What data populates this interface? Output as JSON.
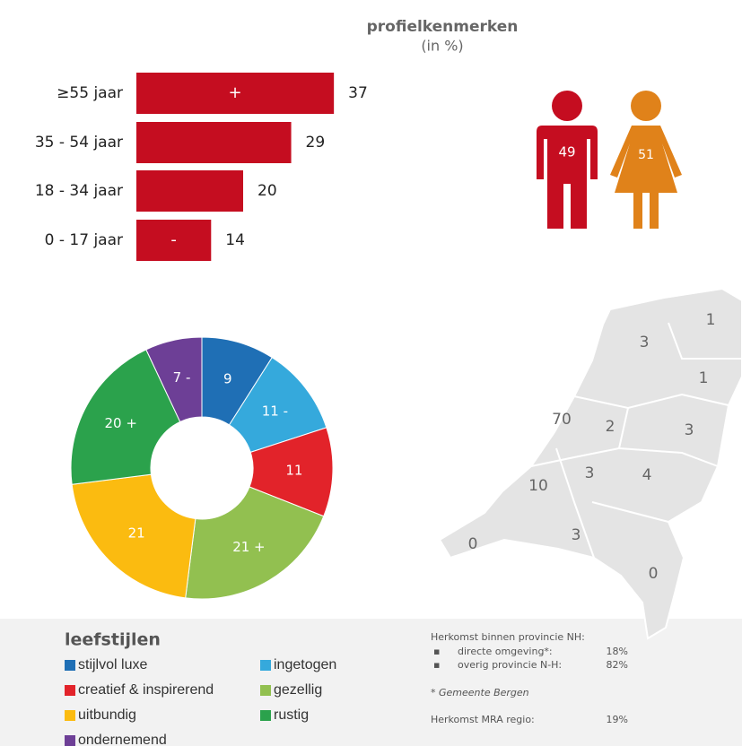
{
  "header": {
    "title": "profielkenmerken",
    "subtitle": "(in %)"
  },
  "chart_data": [
    {
      "type": "bar",
      "orientation": "horizontal",
      "color": "#c50d20",
      "categories": [
        "≥55 jaar",
        "35 - 54 jaar",
        "18 - 34 jaar",
        "0 - 17 jaar"
      ],
      "values": [
        37,
        29,
        20,
        14
      ],
      "markers": [
        "+",
        null,
        null,
        "-"
      ],
      "xlim": [
        0,
        40
      ]
    },
    {
      "type": "pie",
      "title": "leefstijlen",
      "categories": [
        "stijlvol luxe",
        "ingetogen",
        "creatief & inspirerend",
        "gezellig",
        "uitbundig",
        "rustig",
        "ondernemend"
      ],
      "values": [
        9,
        11,
        11,
        21,
        21,
        20,
        7
      ],
      "value_labels": [
        "9",
        "11 -",
        "11",
        "21 +",
        "21",
        "20 +",
        "7 -"
      ],
      "colors": [
        "#1f6fb5",
        "#35a9dc",
        "#e2232a",
        "#92c050",
        "#fbbb10",
        "#2ba24c",
        "#6d3f96"
      ]
    }
  ],
  "gender": {
    "values": [
      49,
      51
    ],
    "colors": [
      "#c50d20",
      "#e0821a"
    ]
  },
  "map": {
    "values": [
      1,
      3,
      1,
      70,
      2,
      3,
      10,
      3,
      4,
      3,
      0,
      0
    ]
  },
  "notes": {
    "title": "Herkomst binnen provincie NH:",
    "items": [
      {
        "label": "directe omgeving*:",
        "value": "18%"
      },
      {
        "label": "overig provincie N-H:",
        "value": "82%"
      }
    ],
    "footnote": "* Gemeente Bergen",
    "mra": {
      "label": "Herkomst MRA regio:",
      "value": "19%"
    }
  }
}
